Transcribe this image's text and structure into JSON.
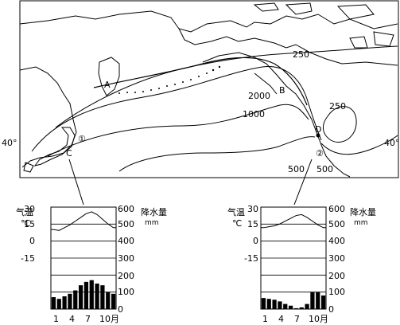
{
  "map": {
    "lat_left": "40°",
    "lat_right": "40°",
    "isoline_labels": [
      "250",
      "2000",
      "1000",
      "250",
      "500",
      "500"
    ],
    "points": [
      "A",
      "B",
      "C",
      "D"
    ],
    "circled": [
      "①",
      "②"
    ]
  },
  "charts": [
    {
      "temp_label": "气温",
      "temp_unit": "℃",
      "precip_label": "降水量",
      "precip_unit": "mm",
      "left_ticks": [
        "30",
        "15",
        "0",
        "-15"
      ],
      "right_ticks": [
        "600",
        "500",
        "400",
        "300",
        "200",
        "100",
        "0"
      ],
      "month_ticks": [
        "1",
        "4",
        "7",
        "10月"
      ]
    },
    {
      "temp_label": "气温",
      "temp_unit": "℃",
      "precip_label": "降水量",
      "precip_unit": "mm",
      "left_ticks": [
        "30",
        "15",
        "0",
        "-15"
      ],
      "right_ticks": [
        "600",
        "500",
        "400",
        "300",
        "200",
        "100",
        "0"
      ],
      "month_ticks": [
        "1",
        "4",
        "7",
        "10月"
      ]
    }
  ],
  "chart_data": [
    {
      "type": "bar",
      "categories": [
        "1",
        "2",
        "3",
        "4",
        "5",
        "6",
        "7",
        "8",
        "9",
        "10",
        "11",
        "12"
      ],
      "temp_c": [
        6,
        5,
        8,
        11,
        15,
        19,
        23,
        25,
        22,
        17,
        12,
        8
      ],
      "precip_mm": [
        70,
        60,
        75,
        90,
        110,
        140,
        160,
        170,
        150,
        140,
        100,
        90
      ],
      "ylim_temp": [
        -30,
        30
      ],
      "ylim_precip": [
        0,
        600
      ]
    },
    {
      "type": "bar",
      "categories": [
        "1",
        "2",
        "3",
        "4",
        "5",
        "6",
        "7",
        "8",
        "9",
        "10",
        "11",
        "12"
      ],
      "temp_c": [
        8,
        9,
        10,
        12,
        15,
        18,
        21,
        22,
        19,
        15,
        11,
        8
      ],
      "precip_mm": [
        65,
        60,
        55,
        45,
        30,
        20,
        5,
        10,
        30,
        100,
        100,
        80
      ],
      "ylim_temp": [
        -30,
        30
      ],
      "ylim_precip": [
        0,
        600
      ]
    }
  ]
}
